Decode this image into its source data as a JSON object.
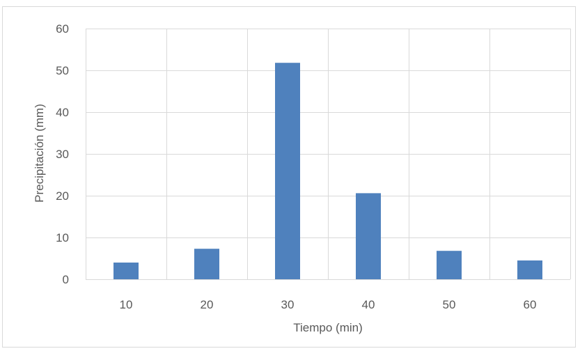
{
  "chart_data": {
    "type": "bar",
    "categories": [
      "10",
      "20",
      "30",
      "40",
      "50",
      "60"
    ],
    "values": [
      4.0,
      7.3,
      51.8,
      20.6,
      6.8,
      4.5
    ],
    "xlabel": "Tiempo (min)",
    "ylabel": "Precipitación (mm)",
    "ylim": [
      0,
      60
    ],
    "yticks": [
      0,
      10,
      20,
      30,
      40,
      50,
      60
    ],
    "grid": true,
    "legend": "none",
    "bar_color": "#4f81bd",
    "grid_color": "#d9d9d9"
  }
}
